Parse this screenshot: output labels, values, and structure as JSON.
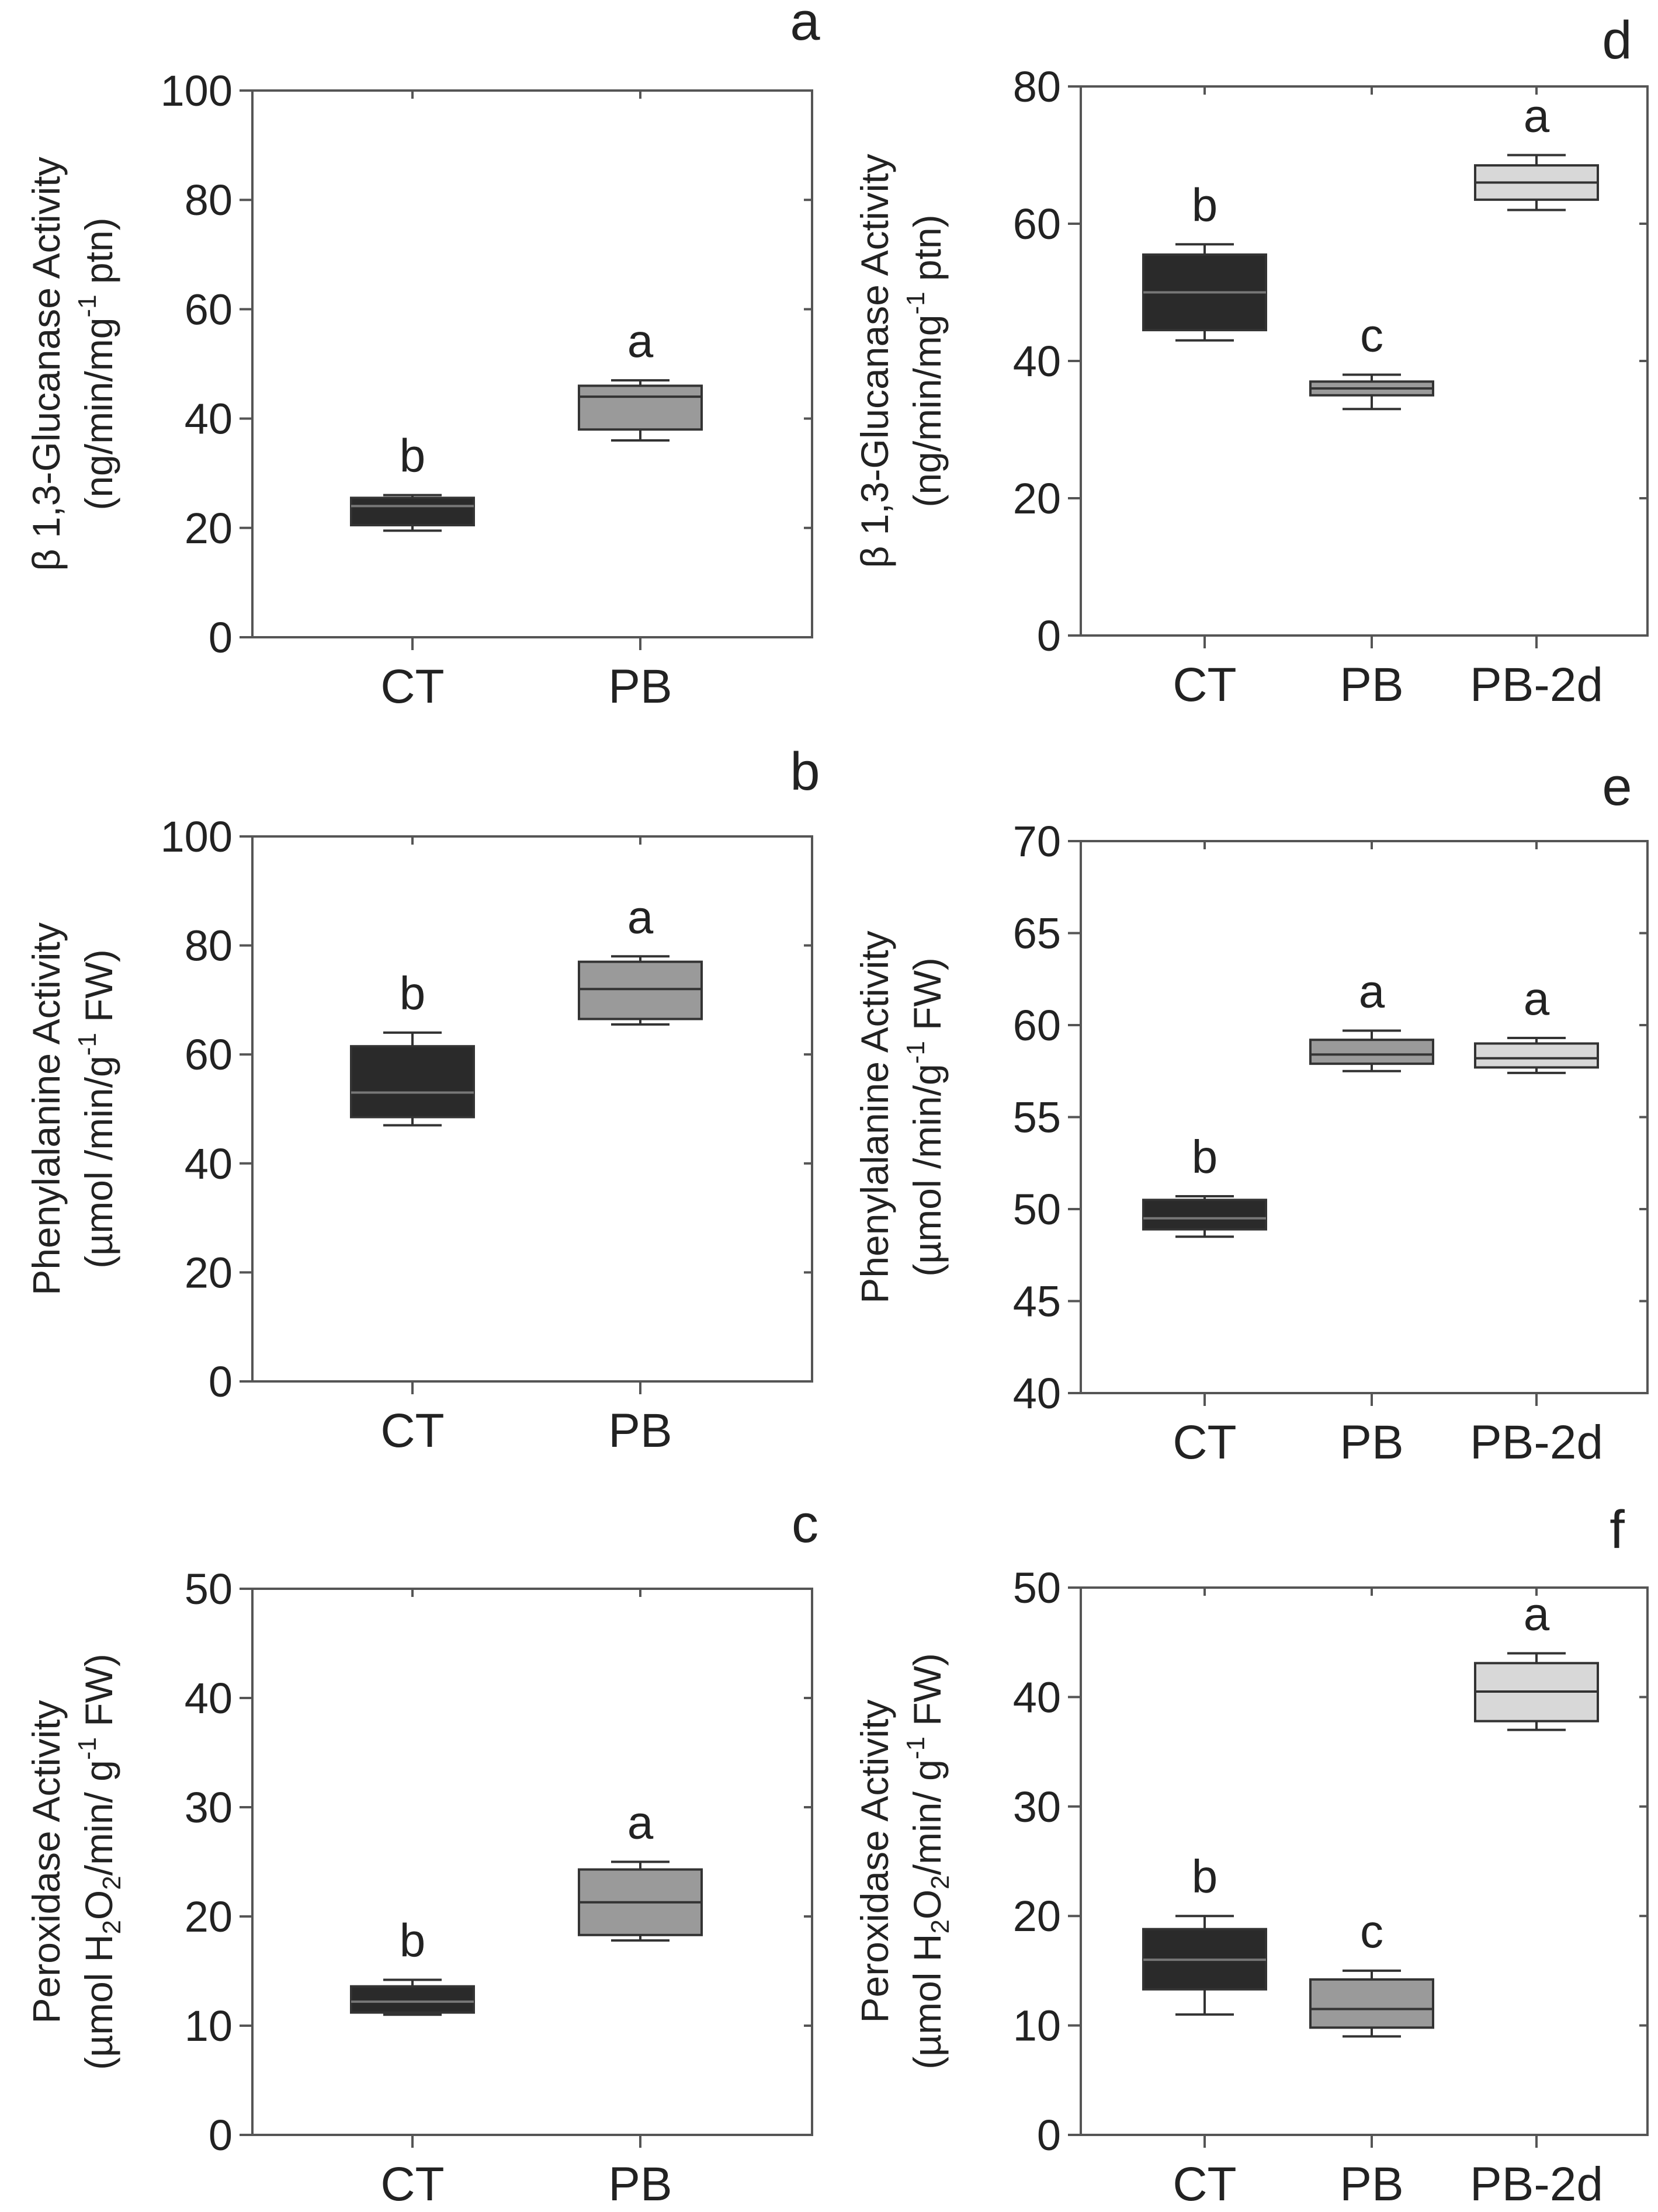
{
  "chart_data": [
    {
      "panel": "a",
      "type": "box",
      "ylabel_line1": "β 1,3-Glucanase Activity",
      "ylabel_line2_pre": "(ng/min/mg",
      "ylabel_line2_sup": "-1",
      "ylabel_line2_post": " ptn)",
      "ylim": [
        0,
        100
      ],
      "yticks": [
        0,
        20,
        40,
        60,
        80,
        100
      ],
      "categories": [
        "CT",
        "PB"
      ],
      "boxes": [
        {
          "cat": "CT",
          "min": 19.5,
          "q1": 20.5,
          "median": 24,
          "q3": 25.5,
          "max": 26,
          "letter": "b",
          "color": "#2a2a2a"
        },
        {
          "cat": "PB",
          "min": 36,
          "q1": 38,
          "median": 44,
          "q3": 46,
          "max": 47,
          "letter": "a",
          "color": "#9a9a9a"
        }
      ]
    },
    {
      "panel": "b",
      "type": "box",
      "ylabel_line1": "Phenylalanine Activity",
      "ylabel_line2_pre": "(µmol /min/g",
      "ylabel_line2_sup": "-1",
      "ylabel_line2_post": " FW)",
      "ylim": [
        0,
        100
      ],
      "yticks": [
        0,
        20,
        40,
        60,
        80,
        100
      ],
      "categories": [
        "CT",
        "PB"
      ],
      "boxes": [
        {
          "cat": "CT",
          "min": 47,
          "q1": 48.5,
          "median": 53,
          "q3": 61.5,
          "max": 64,
          "letter": "b",
          "color": "#2a2a2a"
        },
        {
          "cat": "PB",
          "min": 65.5,
          "q1": 66.5,
          "median": 72,
          "q3": 77,
          "max": 78,
          "letter": "a",
          "color": "#9a9a9a"
        }
      ]
    },
    {
      "panel": "c",
      "type": "box",
      "ylabel_line1": "Peroxidase Activity",
      "ylabel_line2_pre": "(µmol H",
      "ylabel_line2_sub1": "2",
      "ylabel_line2_mid1": "O",
      "ylabel_line2_sub2": "2",
      "ylabel_line2_mid2": "/min/ g",
      "ylabel_line2_sup": "-1",
      "ylabel_line2_post": " FW)",
      "ylim": [
        0,
        50
      ],
      "yticks": [
        0,
        10,
        20,
        30,
        40,
        50
      ],
      "categories": [
        "CT",
        "PB"
      ],
      "boxes": [
        {
          "cat": "CT",
          "min": 11,
          "q1": 11.2,
          "median": 12.2,
          "q3": 13.6,
          "max": 14.2,
          "letter": "b",
          "color": "#2a2a2a"
        },
        {
          "cat": "PB",
          "min": 17.8,
          "q1": 18.3,
          "median": 21.3,
          "q3": 24.3,
          "max": 25,
          "letter": "a",
          "color": "#9a9a9a"
        }
      ]
    },
    {
      "panel": "d",
      "type": "box",
      "ylabel_line1": "β 1,3-Glucanase Activity",
      "ylabel_line2_pre": "(ng/min/mg",
      "ylabel_line2_sup": "-1",
      "ylabel_line2_post": " ptn)",
      "ylim": [
        0,
        80
      ],
      "yticks": [
        0,
        20,
        40,
        60,
        80
      ],
      "categories": [
        "CT",
        "PB",
        "PB-2d"
      ],
      "boxes": [
        {
          "cat": "CT",
          "min": 43,
          "q1": 44.5,
          "median": 50,
          "q3": 55.5,
          "max": 57,
          "letter": "b",
          "color": "#2a2a2a"
        },
        {
          "cat": "PB",
          "min": 33,
          "q1": 35,
          "median": 36,
          "q3": 37,
          "max": 38,
          "letter": "c",
          "color": "#9a9a9a"
        },
        {
          "cat": "PB-2d",
          "min": 62,
          "q1": 63.5,
          "median": 66,
          "q3": 68.5,
          "max": 70,
          "letter": "a",
          "color": "#d8d8d8"
        }
      ]
    },
    {
      "panel": "e",
      "type": "box",
      "ylabel_line1": "Phenylalanine Activity",
      "ylabel_line2_pre": "(µmol /min/g",
      "ylabel_line2_sup": "-1",
      "ylabel_line2_post": " FW)",
      "ylim": [
        40,
        70
      ],
      "yticks": [
        40,
        45,
        50,
        55,
        60,
        65,
        70
      ],
      "categories": [
        "CT",
        "PB",
        "PB-2d"
      ],
      "boxes": [
        {
          "cat": "CT",
          "min": 48.5,
          "q1": 48.9,
          "median": 49.5,
          "q3": 50.5,
          "max": 50.7,
          "letter": "b",
          "color": "#2a2a2a"
        },
        {
          "cat": "PB",
          "min": 57.5,
          "q1": 57.9,
          "median": 58.4,
          "q3": 59.2,
          "max": 59.7,
          "letter": "a",
          "color": "#9a9a9a"
        },
        {
          "cat": "PB-2d",
          "min": 57.4,
          "q1": 57.7,
          "median": 58.2,
          "q3": 59,
          "max": 59.3,
          "letter": "a",
          "color": "#d8d8d8"
        }
      ]
    },
    {
      "panel": "f",
      "type": "box",
      "ylabel_line1": "Peroxidase Activity",
      "ylabel_line2_pre": "(µmol H",
      "ylabel_line2_sub1": "2",
      "ylabel_line2_mid1": "O",
      "ylabel_line2_sub2": "2",
      "ylabel_line2_mid2": "/min/ g",
      "ylabel_line2_sup": "-1",
      "ylabel_line2_post": " FW)",
      "ylim": [
        0,
        50
      ],
      "yticks": [
        0,
        10,
        20,
        30,
        40,
        50
      ],
      "categories": [
        "CT",
        "PB",
        "PB-2d"
      ],
      "boxes": [
        {
          "cat": "CT",
          "min": 11,
          "q1": 13.3,
          "median": 16,
          "q3": 18.8,
          "max": 20,
          "letter": "b",
          "color": "#2a2a2a"
        },
        {
          "cat": "PB",
          "min": 9,
          "q1": 9.8,
          "median": 11.5,
          "q3": 14.2,
          "max": 15,
          "letter": "c",
          "color": "#9a9a9a"
        },
        {
          "cat": "PB-2d",
          "min": 37,
          "q1": 37.8,
          "median": 40.5,
          "q3": 43.1,
          "max": 44,
          "letter": "a",
          "color": "#d8d8d8"
        }
      ]
    }
  ]
}
